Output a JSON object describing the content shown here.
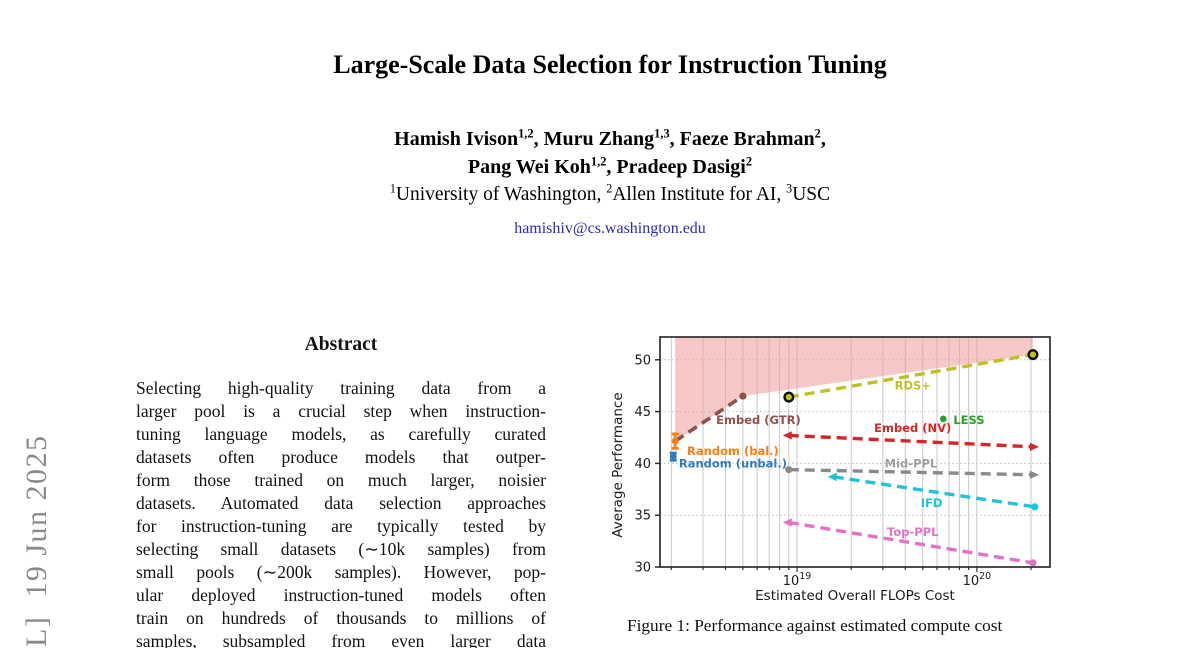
{
  "watermark": {
    "text": "L]  19 Jun 2025",
    "color": "#8a8a8a"
  },
  "header": {
    "title": "Large-Scale Data Selection for Instruction Tuning",
    "author_lines": [
      {
        "segments": [
          {
            "t": "Hamish Ivison"
          },
          {
            "sup": "1,2"
          },
          {
            "t": ", Muru Zhang"
          },
          {
            "sup": "1,3"
          },
          {
            "t": ", Faeze Brahman"
          },
          {
            "sup": "2"
          },
          {
            "t": ","
          }
        ]
      },
      {
        "segments": [
          {
            "t": "Pang Wei Koh"
          },
          {
            "sup": "1,2"
          },
          {
            "t": ", Pradeep Dasigi"
          },
          {
            "sup": "2"
          }
        ]
      }
    ],
    "affiliation_segments": [
      {
        "sup": "1"
      },
      {
        "t": "University of Washington, "
      },
      {
        "sup": "2"
      },
      {
        "t": "Allen Institute for AI, "
      },
      {
        "sup": "3"
      },
      {
        "t": "USC"
      }
    ],
    "email": "hamishiv@cs.washington.edu",
    "email_color": "#2a2ab8"
  },
  "abstract": {
    "heading": "Abstract",
    "lines": [
      "Selecting high-quality training data from a",
      "larger pool is a crucial step when instruction-",
      "tuning language models, as carefully curated",
      "datasets often produce models that outper-",
      "form those trained on much larger, noisier",
      "datasets. Automated data selection approaches",
      "for instruction-tuning are typically tested by",
      "selecting small datasets (∼10k samples) from",
      "small pools (∼200k samples). However, pop-",
      "ular deployed instruction-tuned models often",
      "train on hundreds of thousands to millions of",
      "samples, subsampled from even larger data"
    ]
  },
  "figure": {
    "caption": "Figure 1: Performance against estimated compute cost"
  },
  "chart_data": {
    "type": "line",
    "title": "",
    "xlabel": "Estimated Overall FLOPs Cost",
    "ylabel": "Average Performance",
    "x_scale": "log",
    "xlim": [
      1.73e+18,
      2.55e+20
    ],
    "ylim": [
      30,
      52.2
    ],
    "yticks": [
      30,
      35,
      40,
      45,
      50
    ],
    "xticks": [
      {
        "value": 1e+19,
        "base": "10",
        "exp": "19"
      },
      {
        "value": 1e+20,
        "base": "10",
        "exp": "20"
      }
    ],
    "grid": {
      "vertical_color": "#c8c8c8",
      "horizontal_color": "#bdbdbd"
    },
    "pareto_region": {
      "color": "#ef9a9a",
      "opacity": 0.55,
      "points": [
        [
          2.1e+18,
          52.2
        ],
        [
          2.05e+20,
          52.2
        ],
        [
          2.05e+20,
          50.5
        ],
        [
          5e+18,
          46.5
        ],
        [
          2.1e+18,
          42.1
        ]
      ]
    },
    "series": [
      {
        "name": "Embed (GTR)",
        "label": "Embed (GTR)",
        "color": "#935048",
        "width": 3.6,
        "points": [
          [
            2.1e+18,
            42.15
          ],
          [
            5e+18,
            46.5
          ]
        ],
        "left_marker": "none",
        "right_marker": "dot",
        "label_pos": [
          6.1e+18,
          44.2
        ],
        "label_anchor": "middle"
      },
      {
        "name": "RDS+",
        "label": "RDS+",
        "color": "#bfc122",
        "width": 3.4,
        "points": [
          [
            9e+18,
            46.4
          ],
          [
            2.05e+20,
            50.5
          ]
        ],
        "left_marker": "ring",
        "right_marker": "ring",
        "label_pos": [
          4.4e+19,
          47.5
        ],
        "label_anchor": "middle"
      },
      {
        "name": "Embed (NV)",
        "label": "Embed (NV)",
        "color": "#d62728",
        "width": 3.4,
        "points": [
          [
            9e+18,
            42.7
          ],
          [
            2.05e+20,
            41.6
          ]
        ],
        "left_marker": "arrow-left",
        "right_marker": "arrow",
        "label_pos": [
          4.4e+19,
          43.4
        ],
        "label_anchor": "middle"
      },
      {
        "name": "Mid-PPL",
        "label": "Mid-PPL",
        "color": "#8a8a8a",
        "label_color": "#a0a0a0",
        "width": 3.4,
        "points": [
          [
            9e+18,
            39.4
          ],
          [
            2.05e+20,
            38.9
          ]
        ],
        "left_marker": "dot",
        "right_marker": "arrow",
        "label_pos": [
          4.3e+19,
          40.0
        ],
        "label_anchor": "middle"
      },
      {
        "name": "IFD",
        "label": "IFD",
        "color": "#1fc3dc",
        "width": 3.4,
        "points": [
          [
            1.6e+19,
            38.7
          ],
          [
            2.1e+20,
            35.8
          ]
        ],
        "left_marker": "arrow-left",
        "right_marker": "dot",
        "label_pos": [
          5.6e+19,
          36.2
        ],
        "label_anchor": "middle"
      },
      {
        "name": "Top-PPL",
        "label": "Top-PPL",
        "color": "#e371c5",
        "width": 3.4,
        "points": [
          [
            9e+18,
            34.3
          ],
          [
            2.05e+20,
            30.4
          ]
        ],
        "left_marker": "arrow-left",
        "right_marker": "dot",
        "label_pos": [
          4.4e+19,
          33.4
        ],
        "label_anchor": "middle"
      }
    ],
    "points": [
      {
        "name": "Random (bal.)",
        "label": "Random (bal.)",
        "color": "#ff7f0e",
        "x": 2.1e+18,
        "y": 42.15,
        "yerr": 0.7,
        "label_pos": [
          4.4e+18,
          41.2
        ],
        "label_anchor": "middle"
      },
      {
        "name": "Random (unbal.)",
        "label": "Random (unbal.)",
        "color": "#2e7ebc",
        "x": 2.05e+18,
        "y": 40.65,
        "yerr": 0.35,
        "label_pos": [
          4.4e+18,
          40.0
        ],
        "label_anchor": "middle"
      },
      {
        "name": "LESS",
        "label": "LESS",
        "color": "#2ca02c",
        "x": 6.5e+19,
        "y": 44.3,
        "yerr": 0,
        "label_pos": [
          7.4e+19,
          44.2
        ],
        "label_anchor": "start"
      }
    ]
  }
}
